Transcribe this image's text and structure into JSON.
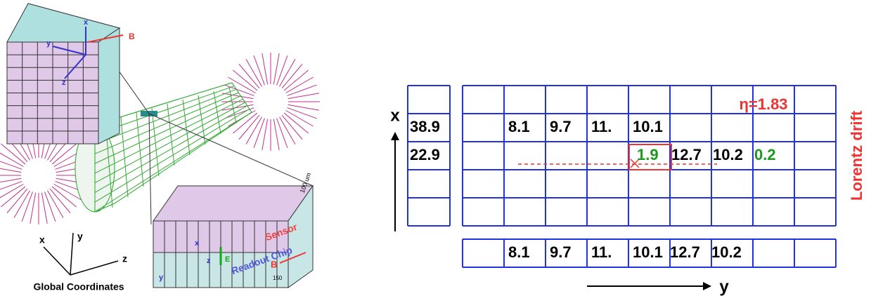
{
  "left_panel": {
    "cube_b": "B",
    "cube_x": "x",
    "cube_y": "y",
    "cube_z": "z",
    "thickness": "100 um",
    "global_x": "x",
    "global_y": "y",
    "global_z": "z",
    "global_caption": "Global Coordinates",
    "sensor": "Sensor",
    "readout_chip": "Readout Chip",
    "box_b": "B",
    "box_e": "E",
    "box_x": "x",
    "box_y": "y",
    "box_z": "z",
    "pitch": "150"
  },
  "right_panel": {
    "x_axis": "x",
    "y_axis": "y",
    "eta": "η=1.83",
    "lorentz": "Lorentz drift",
    "left_column": [
      "38.9",
      "22.9"
    ],
    "row_1": [
      "8.1",
      "9.7",
      "11.",
      "10.1"
    ],
    "row_2": [
      "1.9",
      "12.7",
      "10.2",
      "0.2"
    ],
    "projection": [
      "8.1",
      "9.7",
      "11.",
      "10.1",
      "12.7",
      "10.2"
    ]
  }
}
